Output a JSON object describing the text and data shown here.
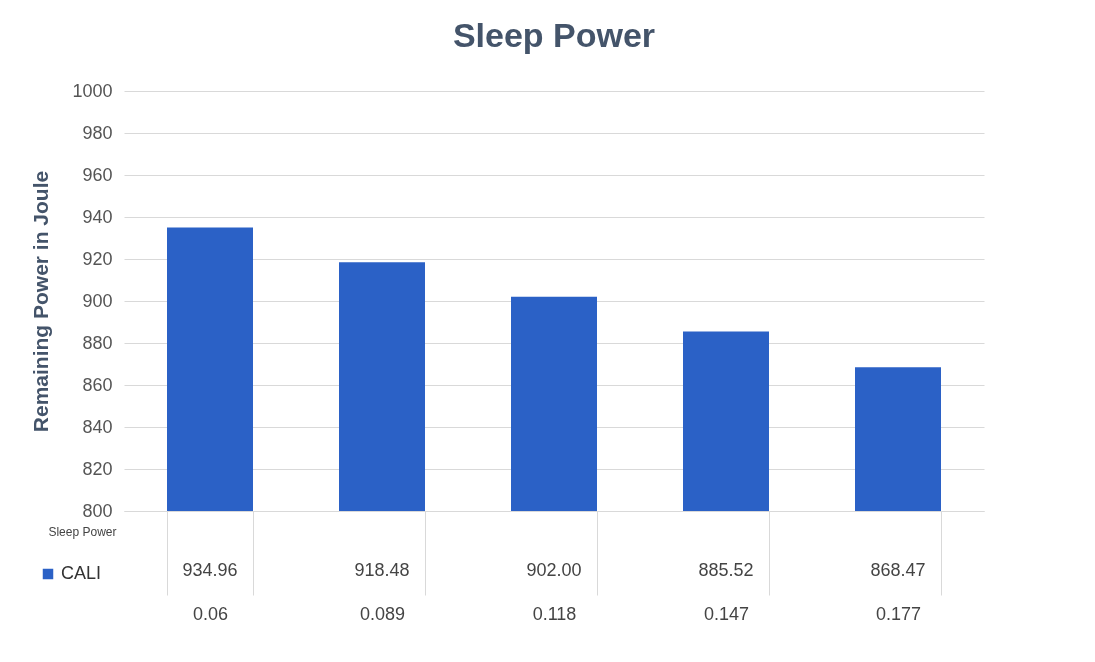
{
  "chart_data": {
    "type": "bar",
    "title": "Sleep Power",
    "xlabel": "Sleep Power",
    "ylabel": "Remaining Power in Joule",
    "categories": [
      "0.06",
      "0.089",
      "0.118",
      "0.147",
      "0.177"
    ],
    "series": [
      {
        "name": "CALI",
        "color": "#2b61c6",
        "values": [
          934.96,
          918.48,
          902.0,
          885.52,
          868.47
        ],
        "value_labels": [
          "934.96",
          "918.48",
          "902.00",
          "885.52",
          "868.47"
        ]
      }
    ],
    "ylim": [
      800,
      1000
    ],
    "yticks": [
      800,
      820,
      840,
      860,
      880,
      900,
      920,
      940,
      960,
      980,
      1000
    ],
    "grid": "y",
    "legend": "bottom"
  }
}
